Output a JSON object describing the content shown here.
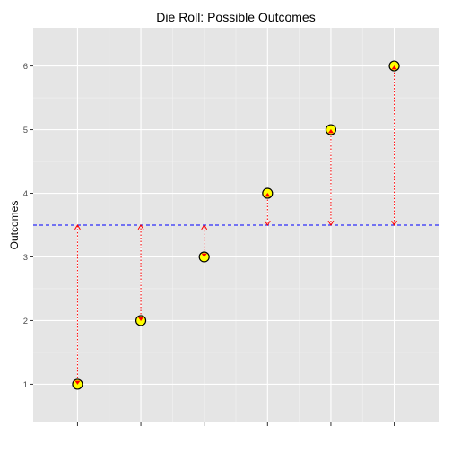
{
  "chart_data": {
    "type": "scatter",
    "title": "Die Roll: Possible Outcomes",
    "xlabel": "",
    "ylabel": "Outcomes",
    "x": [
      1,
      2,
      3,
      4,
      5,
      6
    ],
    "values": [
      1,
      2,
      3,
      4,
      5,
      6
    ],
    "mean_line": 3.5,
    "xlim": [
      0.3,
      6.7
    ],
    "ylim": [
      0.4,
      6.6
    ],
    "yticks": [
      1,
      2,
      3,
      4,
      5,
      6
    ],
    "grid": true,
    "legend": "none",
    "colors": {
      "panel": "#e5e5e5",
      "grid_major": "#ffffff",
      "grid_minor": "#f2f2f2",
      "point_fill": "#ffff00",
      "point_stroke": "#000000",
      "segment": "#ff0000",
      "mean_line": "#0000ff"
    }
  }
}
